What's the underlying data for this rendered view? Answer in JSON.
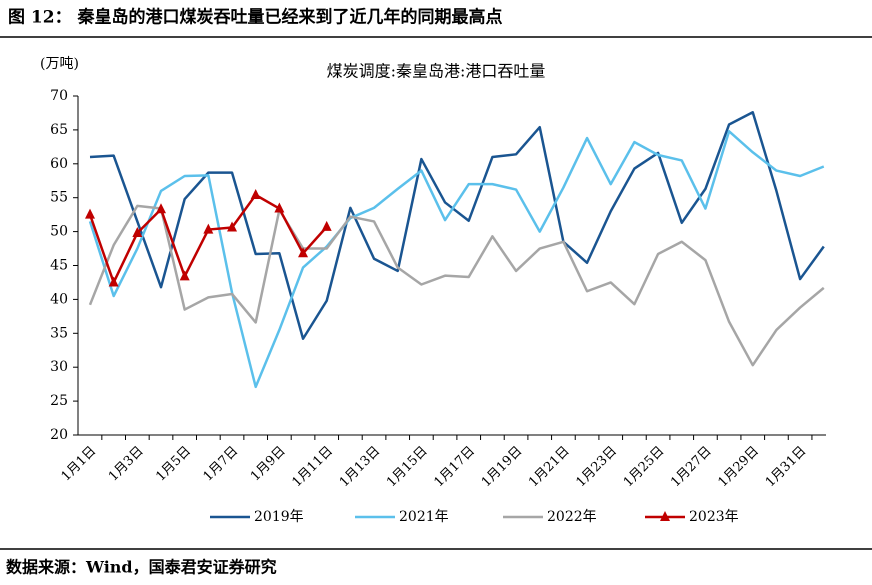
{
  "header": {
    "title": "图 12：  秦皇岛的港口煤炭吞吐量已经来到了近几年的同期最高点"
  },
  "footer": {
    "source": "数据来源：Wind，国泰君安证券研究"
  },
  "chart_data": {
    "type": "line",
    "title": "煤炭调度:秦皇岛港:港口吞吐量",
    "y_label": "(万吨)",
    "categories": [
      "1月1日",
      null,
      "1月3日",
      null,
      "1月5日",
      null,
      "1月7日",
      null,
      "1月9日",
      null,
      "1月11日",
      null,
      "1月13日",
      null,
      "1月15日",
      null,
      "1月17日",
      null,
      "1月19日",
      null,
      "1月21日",
      null,
      "1月23日",
      null,
      "1月25日",
      null,
      "1月27日",
      null,
      "1月29日",
      null,
      "1月31日",
      null
    ],
    "ylim": [
      20,
      70
    ],
    "yticks": [
      20,
      25,
      30,
      35,
      40,
      45,
      50,
      55,
      60,
      65,
      70
    ],
    "grid": false,
    "legend": "bottom",
    "series": [
      {
        "name": "2019年",
        "color": "#1a5591",
        "values": [
          61,
          61.2,
          51.5,
          41.8,
          54.8,
          58.7,
          58.7,
          46.7,
          46.8,
          34.2,
          39.8,
          53.5,
          46,
          44.2,
          60.7,
          54.3,
          51.6,
          61,
          61.4,
          65.4,
          48.5,
          45.4,
          53,
          59.3,
          61.6,
          51.3,
          56.3,
          65.8,
          67.6,
          56,
          43,
          47.8
        ]
      },
      {
        "name": "2021年",
        "color": "#5bc0eb",
        "values": [
          51.5,
          40.5,
          47.5,
          56,
          58.2,
          58.3,
          41,
          27.1,
          35.5,
          44.7,
          47.8,
          52,
          53.5,
          56.3,
          59,
          51.7,
          57,
          57,
          56.2,
          50,
          56.5,
          63.8,
          57,
          63.2,
          61.3,
          60.5,
          53.4,
          64.8,
          61.7,
          59,
          58.2,
          59.6
        ]
      },
      {
        "name": "2022年",
        "color": "#a6a6a6",
        "values": [
          39.2,
          48,
          53.8,
          53.4,
          38.5,
          40.3,
          40.8,
          36.6,
          53.2,
          47.5,
          47.5,
          52.2,
          51.5,
          44.7,
          42.2,
          43.5,
          43.3,
          49.3,
          44.2,
          47.5,
          48.5,
          41.2,
          42.5,
          39.3,
          46.7,
          48.5,
          45.8,
          36.7,
          30.3,
          35.5,
          38.8,
          41.7
        ]
      },
      {
        "name": "2023年",
        "color": "#c00000",
        "marker": "triangle",
        "values": [
          52.5,
          42.5,
          49.8,
          53.3,
          43.4,
          50.3,
          50.6,
          55.4,
          53.4,
          46.8,
          50.7,
          null,
          null,
          null,
          null,
          null,
          null,
          null,
          null,
          null,
          null,
          null,
          null,
          null,
          null,
          null,
          null,
          null,
          null,
          null,
          null,
          null
        ]
      }
    ]
  }
}
